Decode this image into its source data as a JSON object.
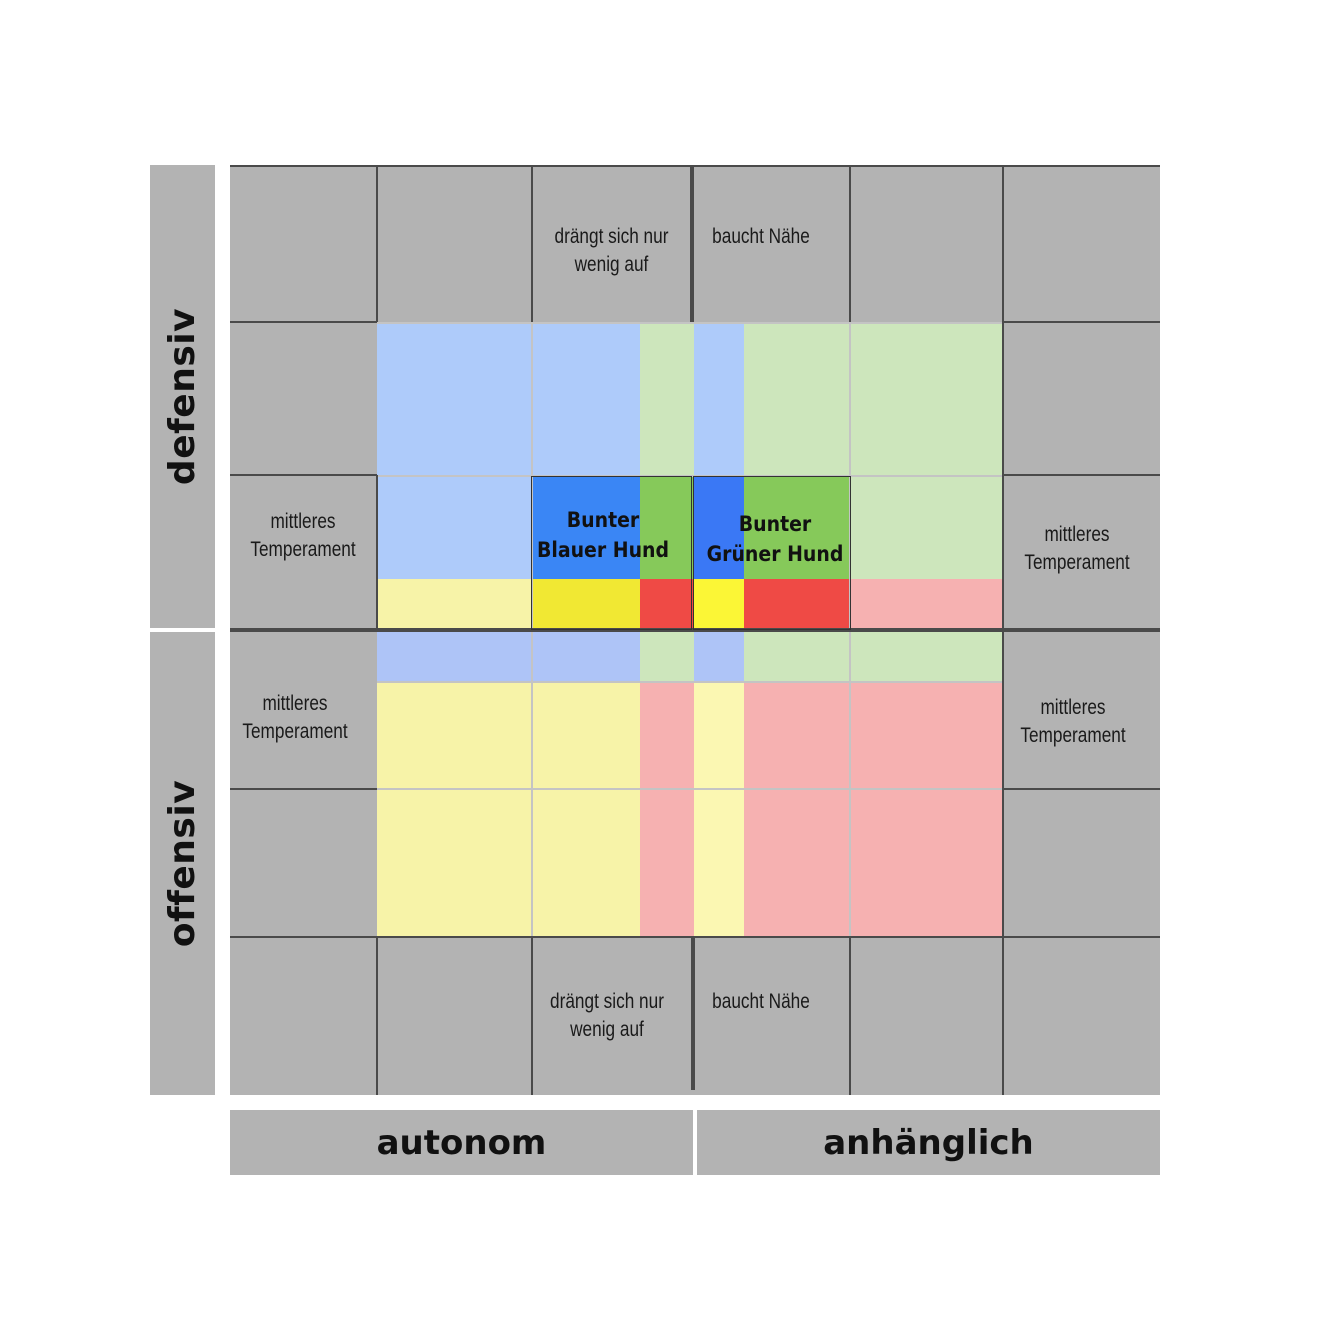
{
  "axes": {
    "left_top": "defensiv",
    "left_bottom": "offensiv",
    "bottom_left": "autonom",
    "bottom_right": "anhänglich"
  },
  "cells": {
    "top_left": "drängt sich nur\nwenig auf",
    "top_right": "baucht  Nähe",
    "bottom_left": "drängt sich nur\nwenig auf",
    "bottom_right": "baucht  Nähe",
    "mid_left_upper": "mittleres\nTemperament",
    "mid_right_upper": "mittleres\nTemperament",
    "mid_left_lower": "mittleres\nTemperament",
    "mid_right_lower": "mittleres\nTemperament"
  },
  "types": {
    "blue": "Bunter\nBlauer Hund",
    "green": "Bunter\nGrüner Hund"
  },
  "colors": {
    "grid_gray": "#b3b3b3",
    "blue_light": "#aecbfa",
    "blue_strong": "#3a86f5",
    "green_light": "#cde6bc",
    "green_strong": "#86c95a",
    "yellow_light": "#f7f3a8",
    "yellow_strong": "#f1e833",
    "red_light": "#f6b1b1",
    "red_strong": "#ef4a45"
  }
}
